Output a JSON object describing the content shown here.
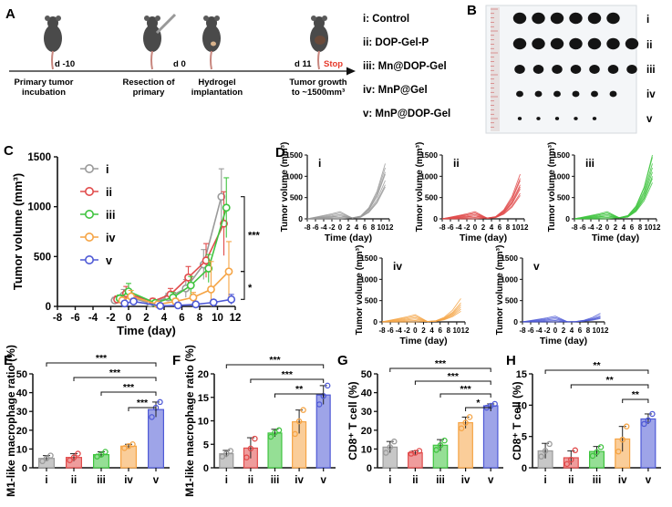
{
  "colors": {
    "i": "#9a9a9a",
    "ii": "#e14b4b",
    "iii": "#3fc43f",
    "iv": "#f5a445",
    "v": "#4f5ad6",
    "ink": "#111111",
    "stop": "#e63a2b"
  },
  "panels": {
    "A": "A",
    "B": "B",
    "C": "C",
    "D": "D",
    "E": "E",
    "F": "F",
    "G": "G",
    "H": "H"
  },
  "schematic": {
    "days": [
      "d -10",
      "d 0",
      "d 11"
    ],
    "stop": "Stop",
    "steps": [
      {
        "lines": [
          "Primary tumor",
          "incubation"
        ]
      },
      {
        "lines": [
          "Resection of",
          "primary"
        ]
      },
      {
        "lines": [
          "Hydrogel",
          "implantation"
        ]
      },
      {
        "lines": [
          "Tumor growth",
          "to ~1500mm³"
        ]
      }
    ],
    "legend": [
      "i: Control",
      "ii: DOP-Gel-P",
      "iii: Mn@DOP-Gel",
      "iv: MnP@Gel",
      "v: MnP@DOP-Gel"
    ]
  },
  "photo": {
    "row_labels": [
      "i",
      "ii",
      "iii",
      "iv",
      "v"
    ],
    "tumor_counts": [
      6,
      7,
      7,
      6,
      5
    ],
    "tumor_size": [
      1.0,
      1.0,
      0.8,
      0.55,
      0.3
    ]
  },
  "chart_data": [
    {
      "panel": "C",
      "type": "line",
      "xlabel": "Time (day)",
      "ylabel": "Tumor volume (mm³)",
      "xlim": [
        -8,
        12
      ],
      "ylim": [
        0,
        1500
      ],
      "xticks": [
        "-8",
        "-6",
        "-4",
        "-2",
        "0",
        "2",
        "4",
        "6",
        "8",
        "10",
        "12"
      ],
      "yticks": [
        "0",
        "500",
        "1000",
        "1500"
      ],
      "x": [
        -1,
        0,
        3,
        5,
        7,
        9,
        11
      ],
      "series": [
        {
          "name": "i",
          "values": [
            60,
            110,
            30,
            90,
            180,
            420,
            1100
          ],
          "err": [
            30,
            60,
            20,
            40,
            90,
            150,
            280
          ]
        },
        {
          "name": "ii",
          "values": [
            70,
            130,
            50,
            120,
            290,
            460,
            830
          ],
          "err": [
            35,
            70,
            30,
            60,
            110,
            170,
            320
          ]
        },
        {
          "name": "iii",
          "values": [
            80,
            150,
            35,
            90,
            210,
            380,
            990
          ],
          "err": [
            35,
            80,
            25,
            50,
            90,
            140,
            300
          ]
        },
        {
          "name": "iv",
          "values": [
            60,
            100,
            20,
            50,
            90,
            170,
            350
          ],
          "err": [
            30,
            60,
            15,
            30,
            50,
            280,
            300
          ]
        },
        {
          "name": "v",
          "values": [
            30,
            50,
            5,
            10,
            20,
            40,
            70
          ],
          "err": [
            20,
            30,
            5,
            10,
            15,
            25,
            50
          ]
        }
      ],
      "significance": [
        "***",
        "*"
      ],
      "legend": "top-left"
    },
    {
      "panel": "D",
      "type": "line",
      "xlabel": "Time (day)",
      "ylabel": "Tumor volume (mm³)",
      "xlim": [
        -8,
        12
      ],
      "ylim": [
        0,
        1500
      ],
      "xticks": [
        "-8",
        "-6",
        "-4",
        "-2",
        "0",
        "2",
        "4",
        "6",
        "8",
        "10",
        "12"
      ],
      "yticks": [
        "0",
        "500",
        "1000",
        "1500"
      ],
      "x": [
        -8,
        -2,
        0,
        3,
        5,
        7,
        9,
        11
      ],
      "groups": [
        {
          "name": "i",
          "finals": [
            1300,
            1200,
            1100,
            1050,
            900,
            800,
            750
          ]
        },
        {
          "name": "ii",
          "finals": [
            1050,
            950,
            900,
            800,
            750,
            700,
            600,
            550
          ]
        },
        {
          "name": "iii",
          "finals": [
            1500,
            1450,
            1300,
            1200,
            1100,
            1000,
            950,
            850
          ]
        },
        {
          "name": "iv",
          "finals": [
            550,
            450,
            400,
            350,
            300,
            250
          ]
        },
        {
          "name": "v",
          "finals": [
            200,
            150,
            120,
            100,
            80
          ]
        }
      ]
    },
    {
      "panel": "E",
      "type": "bar",
      "ylabel": "M1-like macrophage ratio (%)",
      "categories": [
        "i",
        "ii",
        "iii",
        "iv",
        "v"
      ],
      "ylim": [
        0,
        50
      ],
      "yticks": [
        "0",
        "10",
        "20",
        "30",
        "40",
        "50"
      ],
      "values": [
        5,
        5.5,
        7,
        11.5,
        31
      ],
      "err": [
        1.5,
        2,
        1.5,
        1,
        4
      ],
      "points": [
        [
          3.5,
          5,
          6.5
        ],
        [
          4,
          5.5,
          7.5
        ],
        [
          6,
          7,
          8.5
        ],
        [
          10.5,
          11.5,
          12.5
        ],
        [
          27,
          32,
          35
        ]
      ],
      "significance": [
        "***",
        "***",
        "***",
        "***"
      ]
    },
    {
      "panel": "F",
      "type": "bar",
      "ylabel": "M1-like macrophage ratio (%)",
      "categories": [
        "i",
        "ii",
        "iii",
        "iv",
        "v"
      ],
      "ylim": [
        0,
        20
      ],
      "yticks": [
        "0",
        "5",
        "10",
        "15",
        "20"
      ],
      "values": [
        3,
        4.2,
        7.4,
        9.8,
        15.5
      ],
      "err": [
        0.7,
        2.2,
        0.8,
        2.5,
        2.0
      ],
      "points": [
        [
          2.4,
          3,
          3.6
        ],
        [
          2.2,
          4.1,
          6.2
        ],
        [
          6.6,
          7.5,
          8
        ],
        [
          7.2,
          9.9,
          12.3
        ],
        [
          13.5,
          15.3,
          17.5
        ]
      ],
      "significance": [
        "***",
        "***",
        "**"
      ]
    },
    {
      "panel": "G",
      "type": "bar",
      "ylabel": "CD8⁺ T cell (%)",
      "categories": [
        "i",
        "ii",
        "iii",
        "iv",
        "v"
      ],
      "ylim": [
        0,
        50
      ],
      "yticks": [
        "0",
        "10",
        "20",
        "30",
        "40",
        "50"
      ],
      "values": [
        11,
        8,
        12,
        24,
        33
      ],
      "err": [
        3,
        1,
        3,
        3,
        1
      ],
      "points": [
        [
          8,
          11,
          14
        ],
        [
          7.5,
          8,
          9
        ],
        [
          9.5,
          12,
          14.5
        ],
        [
          21,
          24,
          27
        ],
        [
          32,
          33,
          34
        ]
      ],
      "significance": [
        "***",
        "***",
        "***",
        "*"
      ]
    },
    {
      "panel": "H",
      "type": "bar",
      "ylabel": "CD8⁺ T cell (%)",
      "categories": [
        "i",
        "ii",
        "iii",
        "iv",
        "v"
      ],
      "ylim": [
        0,
        15
      ],
      "yticks": [
        "0",
        "5",
        "10",
        "15"
      ],
      "values": [
        2.7,
        1.6,
        2.6,
        4.6,
        7.8
      ],
      "err": [
        1.2,
        1.1,
        0.8,
        2.0,
        0.8
      ],
      "points": [
        [
          1.8,
          2.7,
          3.8
        ],
        [
          0.6,
          1.3,
          2.8
        ],
        [
          1.9,
          2.5,
          3.3
        ],
        [
          2.6,
          4.5,
          6.6
        ],
        [
          7.0,
          7.6,
          8.6
        ]
      ],
      "significance": [
        "**",
        "**",
        "**"
      ]
    }
  ]
}
